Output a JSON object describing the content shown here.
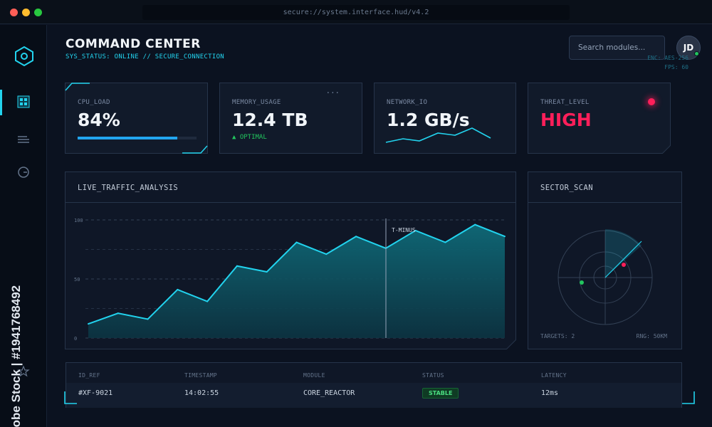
{
  "window": {
    "url": "secure://system.interface.hud/v4.2",
    "controls": {
      "close_color": "#ff5f57",
      "minimize_color": "#febc2e",
      "maximize_color": "#28c840"
    }
  },
  "sidebar": {
    "items": [
      {
        "icon": "hexagon-logo-icon"
      },
      {
        "icon": "grid-icon",
        "active": true
      },
      {
        "icon": "list-lines-icon"
      },
      {
        "icon": "clock-icon"
      },
      {
        "icon": "star-icon"
      }
    ]
  },
  "header": {
    "title": "COMMAND CENTER",
    "subtitle": "SYS_STATUS: ONLINE // SECURE_CONNECTION",
    "search_placeholder": "Search modules...",
    "avatar_initials": "JD",
    "enc": "ENC: AES-256",
    "fps": "FPS: 60"
  },
  "cards": {
    "cpu": {
      "label": "CPU_LOAD",
      "value": "84%",
      "fraction": 0.84
    },
    "memory": {
      "label": "MEMORY_USAGE",
      "value": "12.4 TB",
      "status": "▲ OPTIMAL"
    },
    "network": {
      "label": "NETWORK_IO",
      "value": "1.2 GB/s"
    },
    "threat": {
      "label": "THREAT_LEVEL",
      "value": "HIGH"
    }
  },
  "traffic": {
    "title": "LIVE_TRAFFIC_ANALYSIS",
    "marker_label": "T-MINUS",
    "chart_data": {
      "type": "area",
      "title": "LIVE_TRAFFIC_ANALYSIS",
      "y_ticks": [
        "100",
        "50",
        "0"
      ],
      "ylim": [
        0,
        100
      ],
      "values": [
        12,
        21,
        16,
        41,
        31,
        61,
        56,
        81,
        71,
        86,
        76,
        91,
        81,
        96,
        86
      ],
      "grid": true
    }
  },
  "sector_scan": {
    "title": "SECTOR_SCAN",
    "targets": "TARGETS: 2",
    "range": "RNG: 50KM"
  },
  "table": {
    "columns": [
      "ID_REF",
      "TIMESTAMP",
      "MODULE",
      "STATUS",
      "LATENCY"
    ],
    "rows": [
      {
        "id": "#XF-9021",
        "timestamp": "14:02:55",
        "module": "CORE_REACTOR",
        "status": "STABLE",
        "latency": "12ms"
      }
    ]
  },
  "colors": {
    "accent": "#22d3ee",
    "danger": "#ff1f5a",
    "success": "#22c55e"
  },
  "watermark": {
    "brand": "Adobe Stock",
    "id": "#1941768492"
  }
}
